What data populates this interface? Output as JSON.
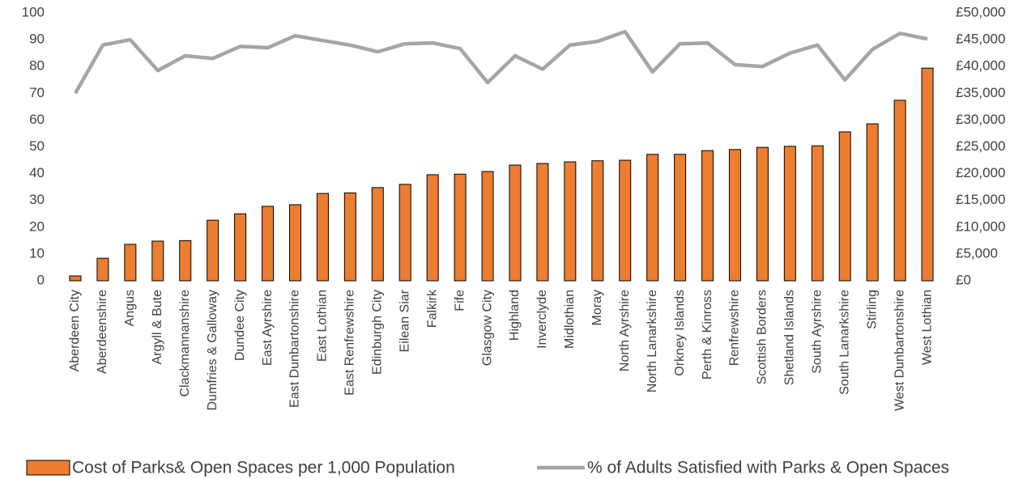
{
  "chart_data": {
    "type": "bar_line",
    "categories": [
      "Aberdeen City",
      "Aberdeenshire",
      "Angus",
      "Argyll & Bute",
      "Clackmannanshire",
      "Dumfries & Galloway",
      "Dundee City",
      "East Ayrshire",
      "East Dunbartonshire",
      "East Lothian",
      "East Renfrewshire",
      "Edinburgh City",
      "Eilean Siar",
      "Falkirk",
      "Fife",
      "Glasgow City",
      "Highland",
      "Inverclyde",
      "Midlothian",
      "Moray",
      "North Ayrshire",
      "North Lanarkshire",
      "Orkney Islands",
      "Perth & Kinross",
      "Renfrewshire",
      "Scottish Borders",
      "Shetland Islands",
      "South Ayrshire",
      "South Lanarkshire",
      "Stirling",
      "West Dunbartonshire",
      "West Lothian"
    ],
    "series": [
      {
        "name": "Cost of Parks& Open Spaces per 1,000 Population",
        "type": "bar",
        "axis": "y2",
        "color": "#ed7d31",
        "values": [
          900,
          4200,
          6800,
          7400,
          7500,
          11300,
          12500,
          13900,
          14200,
          16300,
          16400,
          17400,
          18000,
          19800,
          19900,
          20400,
          21600,
          21900,
          22200,
          22400,
          22500,
          23600,
          23600,
          24300,
          24500,
          24900,
          25100,
          25200,
          27800,
          29300,
          33700,
          39700
        ]
      },
      {
        "name": "% of Adults Satisfied with Parks & Open Spaces",
        "type": "line",
        "axis": "y",
        "color": "#a5a5a5",
        "values": [
          70,
          88,
          90,
          78.5,
          84,
          83,
          87.5,
          87,
          91.5,
          89.7,
          88,
          85.5,
          88.5,
          88.8,
          86.7,
          74,
          84,
          79,
          88,
          89.4,
          93,
          78,
          88.5,
          88.8,
          80.7,
          80,
          85,
          88,
          75,
          86.4,
          92.4,
          90.3
        ]
      }
    ],
    "ylim": [
      0,
      100
    ],
    "yticks": [
      0,
      10,
      20,
      30,
      40,
      50,
      60,
      70,
      80,
      90,
      100
    ],
    "y2lim": [
      0,
      50000
    ],
    "y2ticks": [
      {
        "value": 0,
        "label": "£0"
      },
      {
        "value": 5000,
        "label": "£5,000"
      },
      {
        "value": 10000,
        "label": "£10,000"
      },
      {
        "value": 15000,
        "label": "£15,000"
      },
      {
        "value": 20000,
        "label": "£20,000"
      },
      {
        "value": 25000,
        "label": "£25,000"
      },
      {
        "value": 30000,
        "label": "£30,000"
      },
      {
        "value": 35000,
        "label": "£35,000"
      },
      {
        "value": 40000,
        "label": "£40,000"
      },
      {
        "value": 45000,
        "label": "£45,000"
      },
      {
        "value": 50000,
        "label": "£50,000"
      }
    ],
    "legend": "bottom"
  }
}
